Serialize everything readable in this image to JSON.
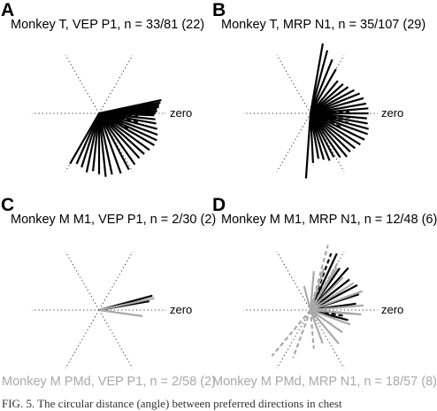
{
  "chart_data": [
    {
      "type": "polar",
      "panel_letter": "A",
      "title": "Monkey T, VEP P1, n = 33/81 (22)",
      "reference_label": "zero",
      "series": [
        {
          "style": "solid",
          "color": "#000000",
          "angles_deg": [
            12,
            10,
            8,
            6,
            4,
            2,
            0,
            -2,
            -6,
            -10,
            -15,
            -20,
            -25,
            -30,
            -36,
            -42,
            -48,
            -55,
            -62,
            -70,
            -78,
            -84,
            -90,
            -96,
            -102,
            -108,
            -114,
            -120
          ],
          "lengths": [
            0.9,
            0.88,
            0.86,
            0.85,
            0.82,
            0.82,
            0.8,
            0.78,
            0.8,
            0.82,
            0.85,
            0.88,
            0.9,
            0.9,
            0.88,
            0.86,
            0.85,
            0.88,
            0.9,
            0.9,
            0.88,
            0.9,
            0.86,
            0.82,
            0.85,
            0.8,
            0.78,
            0.82
          ]
        },
        {
          "style": "dashed",
          "color": "#000000",
          "angles_deg": [
            3,
            -4,
            -12,
            -20,
            -28
          ],
          "lengths": [
            0.5,
            0.55,
            0.6,
            0.55,
            0.5
          ]
        }
      ]
    },
    {
      "type": "polar",
      "panel_letter": "B",
      "title": "Monkey T, MRP N1, n = 35/107 (29)",
      "reference_label": "zero",
      "series": [
        {
          "style": "solid",
          "color": "#000000",
          "angles_deg": [
            80,
            75,
            68,
            60,
            50,
            42,
            35,
            28,
            22,
            16,
            10,
            5,
            0,
            -5,
            -10,
            -15,
            -20,
            -26,
            -32,
            -38,
            -44,
            -50,
            -56,
            -62,
            -68,
            -74,
            -80,
            -87,
            -94
          ],
          "lengths": [
            1.0,
            0.92,
            0.82,
            0.72,
            0.6,
            0.62,
            0.65,
            0.7,
            0.75,
            0.78,
            0.8,
            0.82,
            0.82,
            0.8,
            0.82,
            0.85,
            0.86,
            0.85,
            0.83,
            0.8,
            0.78,
            0.8,
            0.75,
            0.7,
            0.72,
            0.68,
            0.65,
            0.7,
            0.92
          ]
        },
        {
          "style": "dashed",
          "color": "#000000",
          "angles_deg": [
            2,
            -6,
            -14,
            -24
          ],
          "lengths": [
            0.55,
            0.6,
            0.55,
            0.5
          ]
        }
      ]
    },
    {
      "type": "polar",
      "panel_letter": "C",
      "title": "Monkey M M1, VEP P1, n = 2/30 (2)",
      "title_bottom": "Monkey M PMd, VEP P1, n = 2/58 (2)",
      "reference_label": "zero",
      "series": [
        {
          "style": "solid",
          "color": "#000000",
          "angles_deg": [
            15,
            10
          ],
          "lengths": [
            0.78,
            0.72
          ]
        },
        {
          "style": "solid",
          "color": "#a9a9a9",
          "angles_deg": [
            12,
            -8
          ],
          "lengths": [
            0.8,
            0.62
          ]
        }
      ]
    },
    {
      "type": "polar",
      "panel_letter": "D",
      "title": "Monkey M M1, MRP N1, n = 12/48 (6)",
      "title_bottom": "Monkey M PMd, MRP N1, n = 18/57 (8)",
      "reference_label": "zero",
      "series": [
        {
          "style": "solid",
          "color": "#000000",
          "angles_deg": [
            65,
            55,
            48,
            38,
            28,
            18,
            8,
            -5,
            -15
          ],
          "lengths": [
            0.88,
            0.72,
            0.8,
            0.7,
            0.75,
            0.72,
            0.65,
            0.6,
            0.55
          ]
        },
        {
          "style": "dashed",
          "color": "#000000",
          "angles_deg": [
            70,
            -10
          ],
          "lengths": [
            0.85,
            0.5
          ]
        },
        {
          "style": "solid",
          "color": "#a9a9a9",
          "angles_deg": [
            105,
            85,
            72,
            58,
            45,
            32,
            20,
            5,
            -5,
            -20,
            -35,
            -50,
            -70
          ],
          "lengths": [
            0.35,
            0.55,
            0.62,
            0.7,
            0.65,
            0.72,
            0.78,
            0.75,
            0.72,
            0.6,
            0.55,
            0.62,
            0.5
          ]
        },
        {
          "style": "dashed",
          "color": "#a9a9a9",
          "angles_deg": [
            75,
            60,
            -85,
            -110,
            -130
          ],
          "lengths": [
            0.95,
            0.8,
            0.55,
            0.72,
            0.85
          ]
        }
      ]
    }
  ],
  "caption": "FIG. 5.   The circular distance (angle) between preferred directions in chest"
}
